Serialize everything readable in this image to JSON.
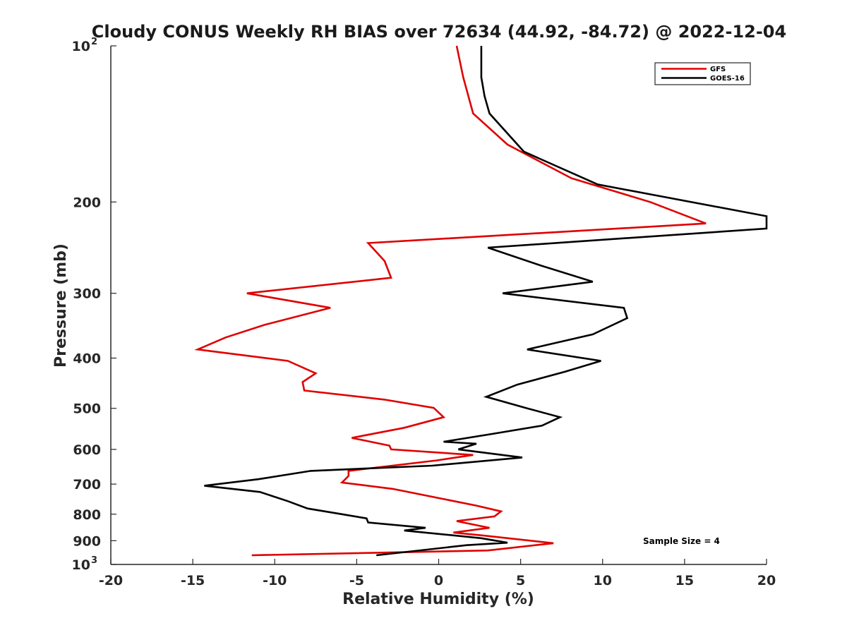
{
  "chart_data": {
    "type": "line",
    "title": "Cloudy CONUS Weekly RH BIAS over 72634 (44.92, -84.72) @ 2022-12-04",
    "xlabel": "Relative Humidity (%)",
    "ylabel": "Pressure (mb)",
    "xlim": [
      -20,
      20
    ],
    "ylim": [
      100,
      1000
    ],
    "y_scale": "log",
    "y_reversed": true,
    "x_ticks": [
      -20,
      -15,
      -10,
      -5,
      0,
      5,
      10,
      15,
      20
    ],
    "x_tick_labels": [
      "-20",
      "-15",
      "-10",
      "-5",
      "0",
      "5",
      "10",
      "15",
      "20"
    ],
    "y_ticks": [
      200,
      300,
      400,
      500,
      600,
      700,
      800,
      900
    ],
    "y_tick_labels": [
      "200",
      "300",
      "400",
      "500",
      "600",
      "700",
      "800",
      "900"
    ],
    "y_end_ticks": [
      {
        "value": 100,
        "base": "10",
        "exp": "2"
      },
      {
        "value": 1000,
        "base": "10",
        "exp": "3"
      }
    ],
    "grid": false,
    "legend_position": "top-right",
    "annotation": "Sample Size = 4",
    "series": [
      {
        "name": "GFS",
        "color": "#e00000",
        "points": [
          {
            "x": 1.1,
            "p": 100
          },
          {
            "x": 1.5,
            "p": 115
          },
          {
            "x": 2.1,
            "p": 135
          },
          {
            "x": 4.2,
            "p": 155
          },
          {
            "x": 8.1,
            "p": 180
          },
          {
            "x": 12.9,
            "p": 200
          },
          {
            "x": 16.3,
            "p": 220
          },
          {
            "x": -4.3,
            "p": 240
          },
          {
            "x": -3.3,
            "p": 260
          },
          {
            "x": -2.9,
            "p": 280
          },
          {
            "x": -11.7,
            "p": 300
          },
          {
            "x": -6.6,
            "p": 320
          },
          {
            "x": -10.6,
            "p": 345
          },
          {
            "x": -13.0,
            "p": 365
          },
          {
            "x": -14.7,
            "p": 385
          },
          {
            "x": -9.2,
            "p": 405
          },
          {
            "x": -7.5,
            "p": 428
          },
          {
            "x": -8.3,
            "p": 445
          },
          {
            "x": -8.2,
            "p": 462
          },
          {
            "x": -3.3,
            "p": 481
          },
          {
            "x": -0.3,
            "p": 499
          },
          {
            "x": 0.3,
            "p": 520
          },
          {
            "x": -2.1,
            "p": 545
          },
          {
            "x": -5.3,
            "p": 570
          },
          {
            "x": -3.0,
            "p": 590
          },
          {
            "x": -2.9,
            "p": 600
          },
          {
            "x": 2.1,
            "p": 615
          },
          {
            "x": -0.1,
            "p": 630
          },
          {
            "x": -5.5,
            "p": 660
          },
          {
            "x": -5.5,
            "p": 675
          },
          {
            "x": -5.9,
            "p": 695
          },
          {
            "x": -2.8,
            "p": 715
          },
          {
            "x": 2.3,
            "p": 770
          },
          {
            "x": 3.8,
            "p": 790
          },
          {
            "x": 3.4,
            "p": 808
          },
          {
            "x": 1.1,
            "p": 825
          },
          {
            "x": 3.1,
            "p": 850
          },
          {
            "x": 0.9,
            "p": 868
          },
          {
            "x": 2.8,
            "p": 880
          },
          {
            "x": 7.0,
            "p": 910
          },
          {
            "x": 3.0,
            "p": 940
          },
          {
            "x": -11.4,
            "p": 960
          }
        ]
      },
      {
        "name": "GOES-16",
        "color": "#000000",
        "points": [
          {
            "x": 2.6,
            "p": 100
          },
          {
            "x": 2.6,
            "p": 115
          },
          {
            "x": 2.8,
            "p": 125
          },
          {
            "x": 3.1,
            "p": 135
          },
          {
            "x": 5.2,
            "p": 160
          },
          {
            "x": 9.7,
            "p": 185
          },
          {
            "x": 20.0,
            "p": 213
          },
          {
            "x": 20.0,
            "p": 225
          },
          {
            "x": 3.0,
            "p": 245
          },
          {
            "x": 6.2,
            "p": 265
          },
          {
            "x": 9.4,
            "p": 285
          },
          {
            "x": 3.9,
            "p": 300
          },
          {
            "x": 11.3,
            "p": 320
          },
          {
            "x": 11.5,
            "p": 335
          },
          {
            "x": 9.4,
            "p": 360
          },
          {
            "x": 5.4,
            "p": 385
          },
          {
            "x": 9.9,
            "p": 405
          },
          {
            "x": 7.7,
            "p": 425
          },
          {
            "x": 4.8,
            "p": 450
          },
          {
            "x": 2.9,
            "p": 475
          },
          {
            "x": 5.4,
            "p": 500
          },
          {
            "x": 7.4,
            "p": 520
          },
          {
            "x": 6.3,
            "p": 540
          },
          {
            "x": 3.3,
            "p": 560
          },
          {
            "x": 0.3,
            "p": 580
          },
          {
            "x": 2.3,
            "p": 585
          },
          {
            "x": 1.2,
            "p": 600
          },
          {
            "x": 5.1,
            "p": 622
          },
          {
            "x": -0.4,
            "p": 645
          },
          {
            "x": -7.8,
            "p": 660
          },
          {
            "x": -11.0,
            "p": 685
          },
          {
            "x": -14.3,
            "p": 705
          },
          {
            "x": -10.9,
            "p": 725
          },
          {
            "x": -9.2,
            "p": 755
          },
          {
            "x": -8.0,
            "p": 780
          },
          {
            "x": -5.9,
            "p": 800
          },
          {
            "x": -4.4,
            "p": 815
          },
          {
            "x": -4.3,
            "p": 830
          },
          {
            "x": -0.8,
            "p": 850
          },
          {
            "x": -2.1,
            "p": 860
          },
          {
            "x": 2.6,
            "p": 890
          },
          {
            "x": 4.2,
            "p": 908
          },
          {
            "x": 1.7,
            "p": 918
          },
          {
            "x": -3.8,
            "p": 960
          }
        ]
      }
    ]
  }
}
